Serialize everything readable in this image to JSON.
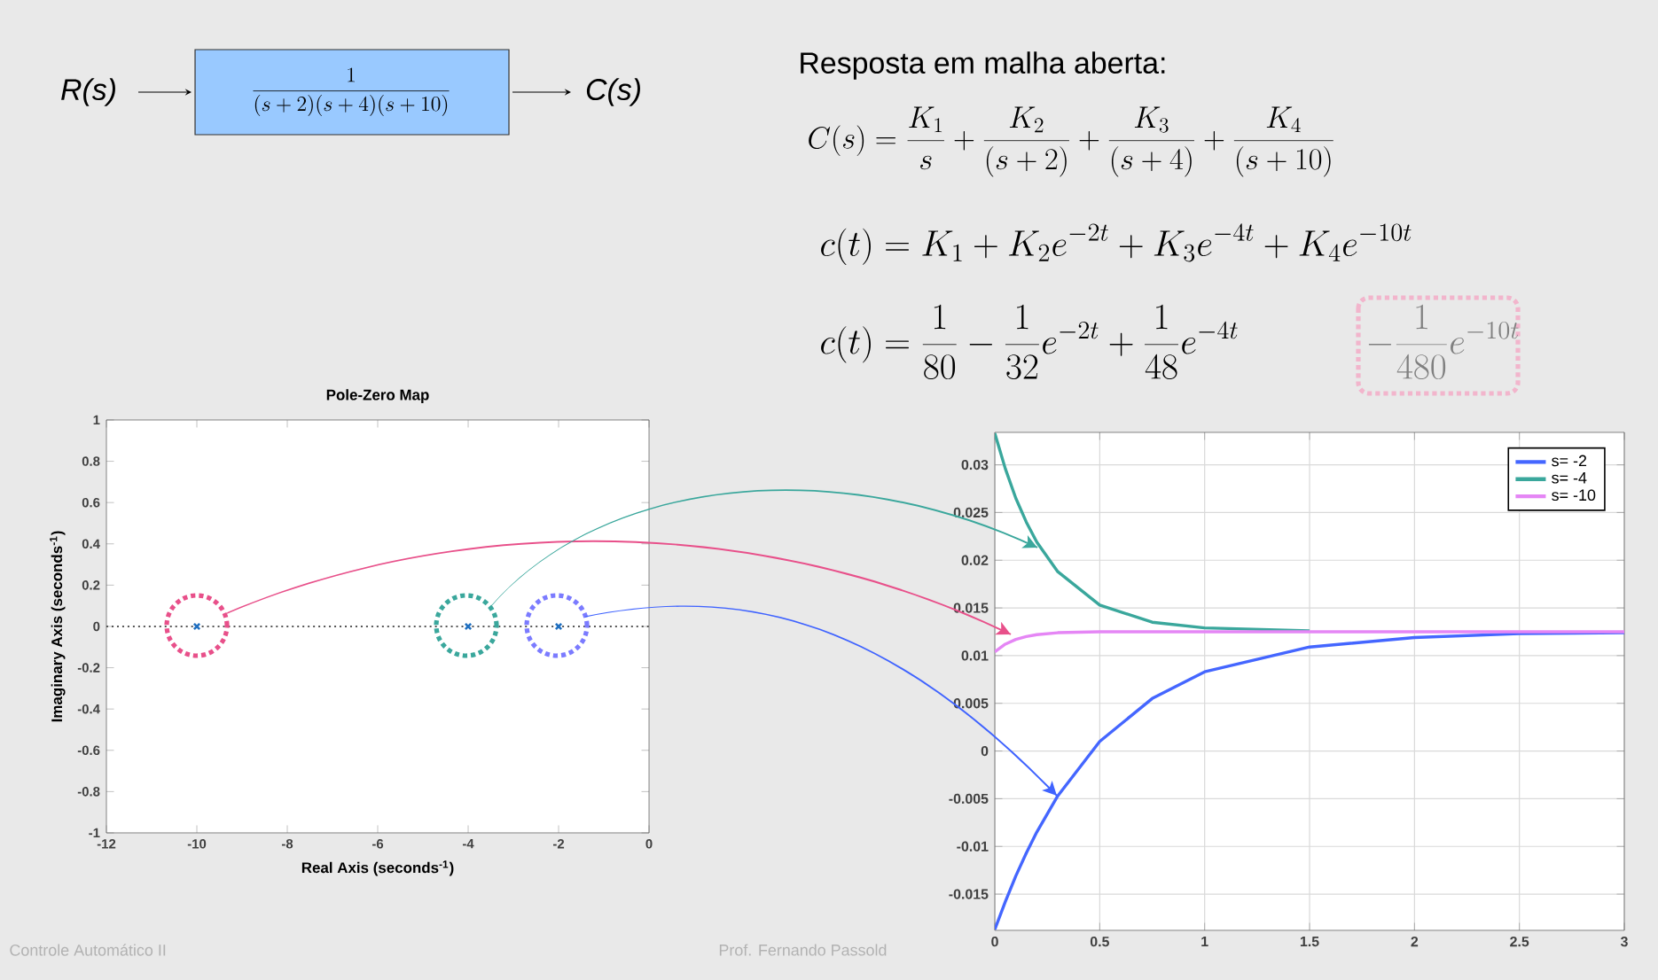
{
  "chart_data": [
    {
      "type": "scatter",
      "title": "Pole-Zero Map",
      "xlabel": "Real Axis (seconds$^{-1}$)",
      "ylabel": "Imaginary Axis (seconds$^{-1}$)",
      "x": [
        -10,
        -4,
        -2
      ],
      "series": [
        {
          "color": "#1f6fc0",
          "values": [
            0,
            0,
            0
          ]
        }
      ],
      "marker": "cross",
      "xlim": [
        -12,
        0
      ],
      "xticks": [
        -12,
        -10,
        -8,
        -6,
        -4,
        -2,
        0
      ],
      "ylim": [
        -1,
        1
      ],
      "yticks": [
        -1,
        -0.8,
        -0.6,
        -0.4,
        -0.2,
        0,
        0.2,
        0.4,
        0.6,
        0.8,
        1
      ],
      "ref_lines": [
        {
          "axis": "y",
          "value": 0,
          "color": "#555555",
          "line_style": "dotted"
        }
      ]
    },
    {
      "type": "line",
      "x": [
        0,
        0.05,
        0.1,
        0.15,
        0.2,
        0.3,
        0.5,
        0.75,
        1,
        1.5,
        2,
        2.5,
        3
      ],
      "series": [
        {
          "name": "s= -2",
          "color": "#4466ff",
          "values": [
            -0.0187,
            -0.0158,
            -0.0131,
            -0.0107,
            -0.0085,
            -0.0047,
            0.001,
            0.0055,
            0.0083,
            0.0109,
            0.0119,
            0.0123,
            0.0124
          ]
        },
        {
          "name": "s= -4",
          "color": "#3aa79c",
          "values": [
            0.0333,
            0.0296,
            0.0265,
            0.024,
            0.0219,
            0.0188,
            0.0153,
            0.0135,
            0.0129,
            0.0126,
            null,
            null,
            null
          ]
        },
        {
          "name": "s= -10",
          "color": "#e586f5",
          "values": [
            0.0104,
            0.0112,
            0.0117,
            0.012,
            0.0122,
            0.0124,
            0.0125,
            0.0125,
            0.0125,
            0.0125,
            0.0125,
            0.0125,
            0.0125
          ]
        }
      ],
      "xlim": [
        0,
        3
      ],
      "xticks": [
        0,
        0.5,
        1,
        1.5,
        2,
        2.5,
        3
      ],
      "ylim": [
        -0.0188,
        0.0334
      ],
      "yticks": [
        -0.015,
        -0.01,
        -0.005,
        0,
        0.005,
        0.01,
        0.015,
        0.02,
        0.025,
        0.03
      ],
      "grid": true,
      "legend": "top right",
      "line_style": "solid"
    },
    {
      "type": "other",
      "annotations": [
        "R(s)",
        "C(s)",
        "\\frac{1}{(s+2)(s+4)(s+10)}",
        "Resposta em malha aberta:",
        "C(s)=\\frac{K_1}{s}+\\frac{K_2}{(s+2)}+\\frac{K_3}{(s+4)}+\\frac{K_4}{(s+10)}",
        "c(t)=K_1+K_2e^{-2t}+K_3e^{-4t}+K_4e^{-10t}",
        "c(t)=\\frac{1}{80}-\\frac{1}{32}e^{-2t}+\\frac{1}{48}e^{-4t}",
        "-\\frac{1}{480}e^{-10t}",
        "Controle Automático II",
        "Prof. Fernando Passold"
      ]
    }
  ]
}
